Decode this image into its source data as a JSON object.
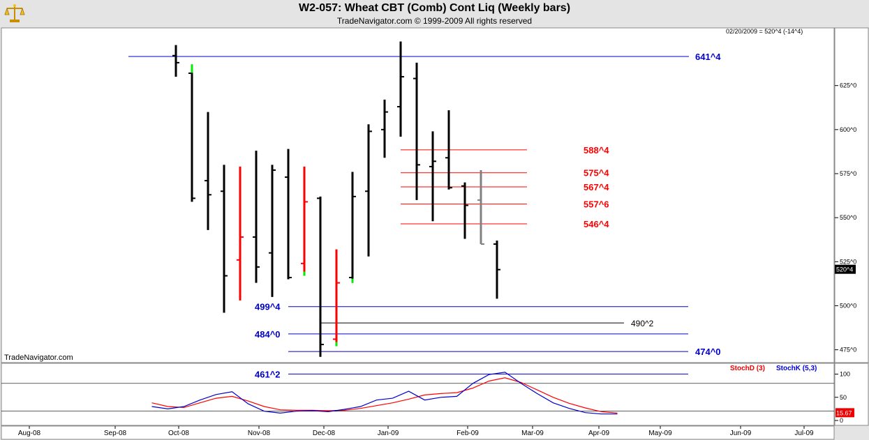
{
  "title": "W2-057:  Wheat CBT (Comb) Cont Liq  (Weekly bars)",
  "subtitle": "TradeNavigator.com © 1999-2009 All rights reserved",
  "watermark": "TradeNavigator.com",
  "info_label": "02/20/2009 = 520^4 (-14^4)",
  "last_price_label": "520^4",
  "colors": {
    "background": "#ffffff",
    "frame": "#e4e4e4",
    "bar_default": "#000000",
    "bar_red": "#ff0000",
    "bar_gray": "#808080",
    "green_tick": "#00ee00",
    "support_blue": "#0000cc",
    "resistance_red": "#dd0000",
    "stochD": "#ee0000",
    "stochK": "#0000dd",
    "stoch_badge": "#ee0000"
  },
  "chart_data": [
    {
      "type": "ohlc",
      "title": "W2-057:  Wheat CBT (Comb) Cont Liq  (Weekly bars)",
      "ylim": [
        458,
        648
      ],
      "y_ticks": [
        {
          "value": 475,
          "label": "475^0"
        },
        {
          "value": 500,
          "label": "500^0"
        },
        {
          "value": 525,
          "label": "525^0"
        },
        {
          "value": 550,
          "label": "550^0"
        },
        {
          "value": 575,
          "label": "575^0"
        },
        {
          "value": 600,
          "label": "600^0"
        },
        {
          "value": 625,
          "label": "625^0"
        }
      ],
      "x_ticks": [
        "Aug-08",
        "Sep-08",
        "Oct-08",
        "Nov-08",
        "Dec-08",
        "Jan-09",
        "Feb-09",
        "Mar-09",
        "Apr-09",
        "May-09",
        "Jun-09",
        "Jul-09"
      ],
      "bars": [
        {
          "w": 0,
          "h": 648,
          "l": 630,
          "o": 642,
          "c": 638,
          "color": "black"
        },
        {
          "w": 1,
          "h": 637,
          "l": 559,
          "o": 632,
          "c": 561,
          "color": "black",
          "mark": "green-top"
        },
        {
          "w": 2,
          "h": 610,
          "l": 543,
          "o": 571,
          "c": 563,
          "color": "black"
        },
        {
          "w": 3,
          "h": 580,
          "l": 496,
          "o": 565,
          "c": 517,
          "color": "black"
        },
        {
          "w": 4,
          "h": 579,
          "l": 503,
          "o": 526,
          "c": 539,
          "color": "red"
        },
        {
          "w": 5,
          "h": 588,
          "l": 513,
          "o": 539,
          "c": 522,
          "color": "black"
        },
        {
          "w": 6,
          "h": 580,
          "l": 505,
          "o": 530,
          "c": 577,
          "color": "black"
        },
        {
          "w": 7,
          "h": 589,
          "l": 515,
          "o": 573,
          "c": 516,
          "color": "black"
        },
        {
          "w": 8,
          "h": 579,
          "l": 517,
          "o": 524,
          "c": 559,
          "color": "red",
          "mark": "green-bottom"
        },
        {
          "w": 9,
          "h": 562,
          "l": 471,
          "o": 561,
          "c": 478,
          "color": "black"
        },
        {
          "w": 10,
          "h": 532,
          "l": 477,
          "o": 481,
          "c": 513,
          "color": "red",
          "mark": "green-bottom"
        },
        {
          "w": 11,
          "h": 576,
          "l": 513,
          "o": 516,
          "c": 562,
          "color": "black",
          "mark": "green-bottom"
        },
        {
          "w": 12,
          "h": 603,
          "l": 528,
          "o": 565,
          "c": 599,
          "color": "black"
        },
        {
          "w": 13,
          "h": 617,
          "l": 584,
          "o": 600,
          "c": 610,
          "color": "black"
        },
        {
          "w": 14,
          "h": 650,
          "l": 596,
          "o": 613,
          "c": 630,
          "color": "black"
        },
        {
          "w": 15,
          "h": 638,
          "l": 560,
          "o": 629,
          "c": 580,
          "color": "black"
        },
        {
          "w": 16,
          "h": 599,
          "l": 548,
          "o": 579,
          "c": 582,
          "color": "black"
        },
        {
          "w": 17,
          "h": 611,
          "l": 566,
          "o": 584,
          "c": 567,
          "color": "black"
        },
        {
          "w": 18,
          "h": 570,
          "l": 538,
          "o": 568,
          "c": 557,
          "color": "black"
        },
        {
          "w": 19,
          "h": 577,
          "l": 535,
          "o": 560,
          "c": 535,
          "color": "gray"
        },
        {
          "w": 20,
          "h": 537,
          "l": 504,
          "o": 535,
          "c": 520.5,
          "color": "black"
        }
      ],
      "levels": [
        {
          "value": 641.5,
          "label": "641^4",
          "color": "blue",
          "label_side": "right",
          "from": "Aug-08",
          "to": "Jul-09"
        },
        {
          "value": 588.5,
          "label": "588^4",
          "color": "red",
          "label_side": "right",
          "from": "Jan-09",
          "to": "Mar-09"
        },
        {
          "value": 575.5,
          "label": "575^4",
          "color": "red",
          "label_side": "right",
          "from": "Jan-09",
          "to": "Mar-09"
        },
        {
          "value": 567.5,
          "label": "567^4",
          "color": "red",
          "label_side": "right",
          "from": "Jan-09",
          "to": "Mar-09"
        },
        {
          "value": 557.75,
          "label": "557^6",
          "color": "red",
          "label_side": "right",
          "from": "Jan-09",
          "to": "Mar-09"
        },
        {
          "value": 546.5,
          "label": "546^4",
          "color": "red",
          "label_side": "right",
          "from": "Jan-09",
          "to": "Mar-09"
        },
        {
          "value": 499.5,
          "label": "499^4",
          "color": "blue",
          "label_side": "left",
          "from": "Nov-08",
          "to": "May-09"
        },
        {
          "value": 490.25,
          "label": "490^2",
          "color": "black",
          "label_side": "right",
          "from": "Dec-08",
          "to": "Apr-09"
        },
        {
          "value": 484.0,
          "label": "484^0",
          "color": "blue",
          "label_side": "left",
          "from": "Nov-08",
          "to": "May-09"
        },
        {
          "value": 474.0,
          "label": "474^0",
          "color": "blue",
          "label_side": "right",
          "from": "Nov-08",
          "to": "May-09"
        },
        {
          "value": 461.25,
          "label": "461^2",
          "color": "blue",
          "label_side": "left",
          "from": "Nov-08",
          "to": "May-09"
        }
      ]
    },
    {
      "type": "line",
      "title": "",
      "ylim": [
        0,
        120
      ],
      "y_ticks": [
        {
          "value": 100,
          "label": "100"
        },
        {
          "value": 50,
          "label": "50"
        },
        {
          "value": 0,
          "label": "0"
        }
      ],
      "ref_lines": [
        80,
        20
      ],
      "last_value_label": "15.67",
      "series": [
        {
          "name": "StochD (3)",
          "color": "red",
          "points": [
            [
              -1.5,
              38
            ],
            [
              -0.5,
              30
            ],
            [
              0.5,
              28
            ],
            [
              1.5,
              38
            ],
            [
              2.5,
              48
            ],
            [
              3.5,
              52
            ],
            [
              4.5,
              42
            ],
            [
              5.5,
              30
            ],
            [
              6.5,
              23
            ],
            [
              7.5,
              22
            ],
            [
              8.5,
              22
            ],
            [
              9.5,
              21
            ],
            [
              10.5,
              22
            ],
            [
              11.5,
              26
            ],
            [
              12.5,
              32
            ],
            [
              13.5,
              38
            ],
            [
              14.5,
              46
            ],
            [
              15.5,
              55
            ],
            [
              16.5,
              58
            ],
            [
              17.5,
              60
            ],
            [
              18.5,
              70
            ],
            [
              19.5,
              85
            ],
            [
              20.5,
              92
            ],
            [
              21.5,
              82
            ],
            [
              22.5,
              66
            ],
            [
              23.5,
              50
            ],
            [
              24.5,
              37
            ],
            [
              25.5,
              27
            ],
            [
              26.5,
              19
            ],
            [
              27.5,
              16
            ]
          ]
        },
        {
          "name": "StochK (5,3)",
          "color": "blue",
          "points": [
            [
              -1.5,
              30
            ],
            [
              -0.5,
              25
            ],
            [
              0.5,
              30
            ],
            [
              1.5,
              44
            ],
            [
              2.5,
              56
            ],
            [
              3.5,
              62
            ],
            [
              4.5,
              36
            ],
            [
              5.5,
              20
            ],
            [
              6.5,
              16
            ],
            [
              7.5,
              20
            ],
            [
              8.5,
              21
            ],
            [
              9.5,
              19
            ],
            [
              10.5,
              24
            ],
            [
              11.5,
              30
            ],
            [
              12.5,
              44
            ],
            [
              13.5,
              48
            ],
            [
              14.5,
              63
            ],
            [
              15.5,
              44
            ],
            [
              16.5,
              50
            ],
            [
              17.5,
              52
            ],
            [
              18.5,
              80
            ],
            [
              19.5,
              99
            ],
            [
              20.5,
              104
            ],
            [
              21.5,
              80
            ],
            [
              22.5,
              58
            ],
            [
              23.5,
              38
            ],
            [
              24.5,
              26
            ],
            [
              25.5,
              17
            ],
            [
              26.5,
              14
            ],
            [
              27.5,
              14
            ]
          ]
        }
      ]
    }
  ]
}
